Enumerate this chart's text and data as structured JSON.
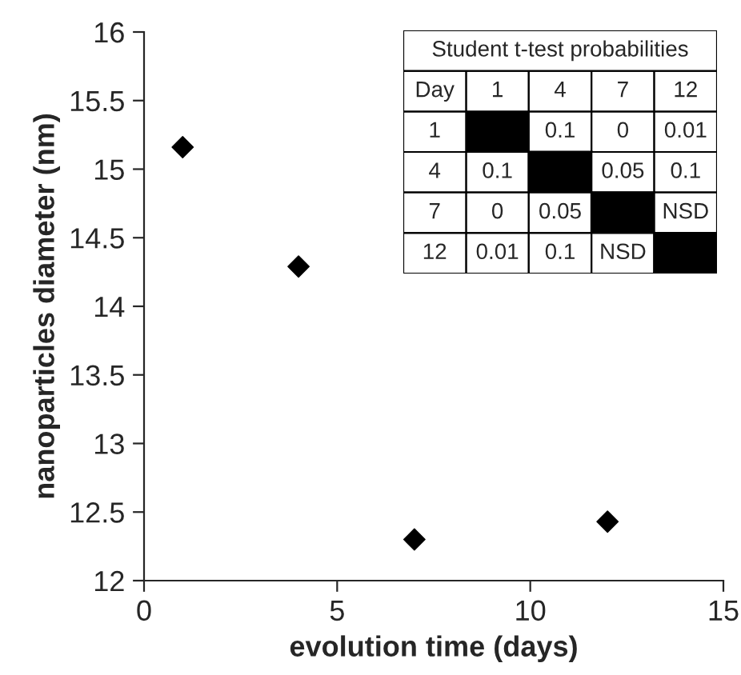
{
  "chart_data": [
    {
      "type": "scatter",
      "xlabel": "evolution time (days)",
      "ylabel": "nanoparticles diameter (nm)",
      "x": [
        1,
        4,
        7,
        12
      ],
      "series": [
        {
          "color": "#000000",
          "values": [
            15.16,
            14.29,
            12.3,
            12.43
          ]
        }
      ],
      "marker": "diamond",
      "xlim": [
        0,
        15
      ],
      "xticks": [
        0,
        5,
        10,
        15
      ],
      "ylim": [
        12,
        16
      ],
      "yticks": [
        12,
        12.5,
        13,
        13.5,
        14,
        14.5,
        15,
        15.5,
        16
      ],
      "grid": false,
      "legend": false
    },
    {
      "type": "other",
      "title": "Student t-test probabilities",
      "annotations": [
        "Day"
      ],
      "categories": [
        "1",
        "4",
        "7",
        "12"
      ],
      "y_categories": [
        "1",
        "4",
        "7",
        "12"
      ],
      "cell_labels": [
        [
          null,
          "0.1",
          "0",
          "0.01"
        ],
        [
          "0.1",
          null,
          "0.05",
          "0.1"
        ],
        [
          "0",
          "0.05",
          null,
          "NSD"
        ],
        [
          "0.01",
          "0.1",
          "NSD",
          null
        ]
      ]
    }
  ]
}
